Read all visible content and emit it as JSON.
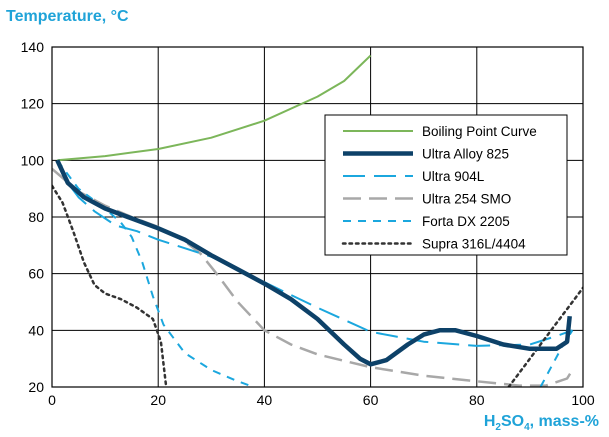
{
  "chart_data": {
    "type": "line",
    "title": "",
    "ylabel": "Temperature, °C",
    "xlabel": "H₂SO₄, mass-%",
    "xlabel_parts": {
      "h": "H",
      "sub1": "2",
      "so": "SO",
      "sub2": "4",
      "rest": ", mass-%"
    },
    "xlim": [
      0,
      100
    ],
    "ylim": [
      20,
      140
    ],
    "x_ticks": [
      "0",
      "20",
      "40",
      "60",
      "80",
      "100"
    ],
    "y_ticks": [
      "20",
      "40",
      "60",
      "80",
      "100",
      "120",
      "140"
    ],
    "grid": true,
    "legend_position": "right",
    "series": [
      {
        "name": "Boiling Point Curve",
        "color": "#7cb65a",
        "style": "solid",
        "width": 2,
        "points": [
          [
            1,
            100
          ],
          [
            10,
            101.5
          ],
          [
            20,
            104
          ],
          [
            30,
            108
          ],
          [
            40,
            114
          ],
          [
            50,
            122.5
          ],
          [
            55,
            128
          ],
          [
            60,
            137
          ]
        ]
      },
      {
        "name": "Ultra Alloy 825",
        "color": "#0d4168",
        "style": "solid",
        "width": 4.5,
        "points": [
          [
            1,
            100
          ],
          [
            3,
            92
          ],
          [
            6,
            87
          ],
          [
            10,
            83
          ],
          [
            15,
            79.5
          ],
          [
            20,
            76
          ],
          [
            25,
            72
          ],
          [
            30,
            66.5
          ],
          [
            35,
            61.5
          ],
          [
            40,
            56.5
          ],
          [
            45,
            51
          ],
          [
            50,
            44
          ],
          [
            55,
            35
          ],
          [
            58,
            30
          ],
          [
            60,
            28
          ],
          [
            63,
            29.5
          ],
          [
            67,
            35
          ],
          [
            70,
            38.5
          ],
          [
            73,
            40
          ],
          [
            76,
            40
          ],
          [
            80,
            38
          ],
          [
            85,
            35
          ],
          [
            90,
            33.5
          ],
          [
            95,
            33.5
          ],
          [
            97,
            36
          ],
          [
            97.5,
            45
          ]
        ]
      },
      {
        "name": "Ultra 904L",
        "color": "#1ba7de",
        "style": "dash",
        "width": 2,
        "points": [
          [
            1,
            100
          ],
          [
            3,
            92
          ],
          [
            5,
            87
          ],
          [
            8,
            82
          ],
          [
            12,
            77
          ],
          [
            16,
            75
          ],
          [
            20,
            72
          ],
          [
            30,
            66
          ],
          [
            40,
            57
          ],
          [
            50,
            48
          ],
          [
            60,
            39.5
          ],
          [
            70,
            36
          ],
          [
            80,
            34.5
          ],
          [
            90,
            35
          ],
          [
            95,
            38
          ],
          [
            98,
            40
          ]
        ]
      },
      {
        "name": "Ultra 254 SMO",
        "color": "#a8a8a8",
        "style": "longdash",
        "width": 2.5,
        "points": [
          [
            0,
            97
          ],
          [
            5,
            89
          ],
          [
            10,
            84
          ],
          [
            15,
            80
          ],
          [
            20,
            76.5
          ],
          [
            25,
            71.5
          ],
          [
            28,
            67
          ],
          [
            31,
            60
          ],
          [
            35,
            50
          ],
          [
            40,
            40
          ],
          [
            45,
            35
          ],
          [
            50,
            31.5
          ],
          [
            60,
            27
          ],
          [
            70,
            24
          ],
          [
            80,
            22
          ],
          [
            88,
            20.5
          ],
          [
            93,
            20.5
          ],
          [
            97,
            23
          ],
          [
            98,
            26
          ]
        ]
      },
      {
        "name": "Forta DX 2205",
        "color": "#1ba7de",
        "style": "shortdash",
        "width": 2,
        "points": [
          [
            1,
            100
          ],
          [
            5,
            90
          ],
          [
            10,
            83
          ],
          [
            13,
            78
          ],
          [
            15,
            73
          ],
          [
            17,
            64
          ],
          [
            19,
            52
          ],
          [
            21,
            42
          ],
          [
            25,
            32
          ],
          [
            30,
            26
          ],
          [
            35,
            22
          ],
          [
            38,
            20
          ]
        ]
      },
      {
        "name": "Supra 316L/4404",
        "color": "#333333",
        "style": "dot",
        "width": 2.5,
        "points": [
          [
            0,
            91
          ],
          [
            2,
            85
          ],
          [
            4,
            75
          ],
          [
            6,
            64
          ],
          [
            8,
            56
          ],
          [
            10,
            53
          ],
          [
            13,
            51
          ],
          [
            16,
            48
          ],
          [
            19,
            44
          ],
          [
            20.5,
            36
          ],
          [
            21.5,
            20
          ]
        ]
      },
      {
        "name": "",
        "legend": false,
        "color": "#333333",
        "style": "dot",
        "width": 2.5,
        "points": [
          [
            86,
            20
          ],
          [
            90,
            30
          ],
          [
            94,
            40
          ],
          [
            98,
            50
          ],
          [
            100,
            55
          ]
        ]
      },
      {
        "name": "",
        "legend": false,
        "color": "#1ba7de",
        "style": "shortdash",
        "width": 2,
        "points": [
          [
            92,
            20
          ],
          [
            94,
            27
          ],
          [
            96,
            34
          ],
          [
            98,
            40
          ]
        ]
      }
    ]
  }
}
